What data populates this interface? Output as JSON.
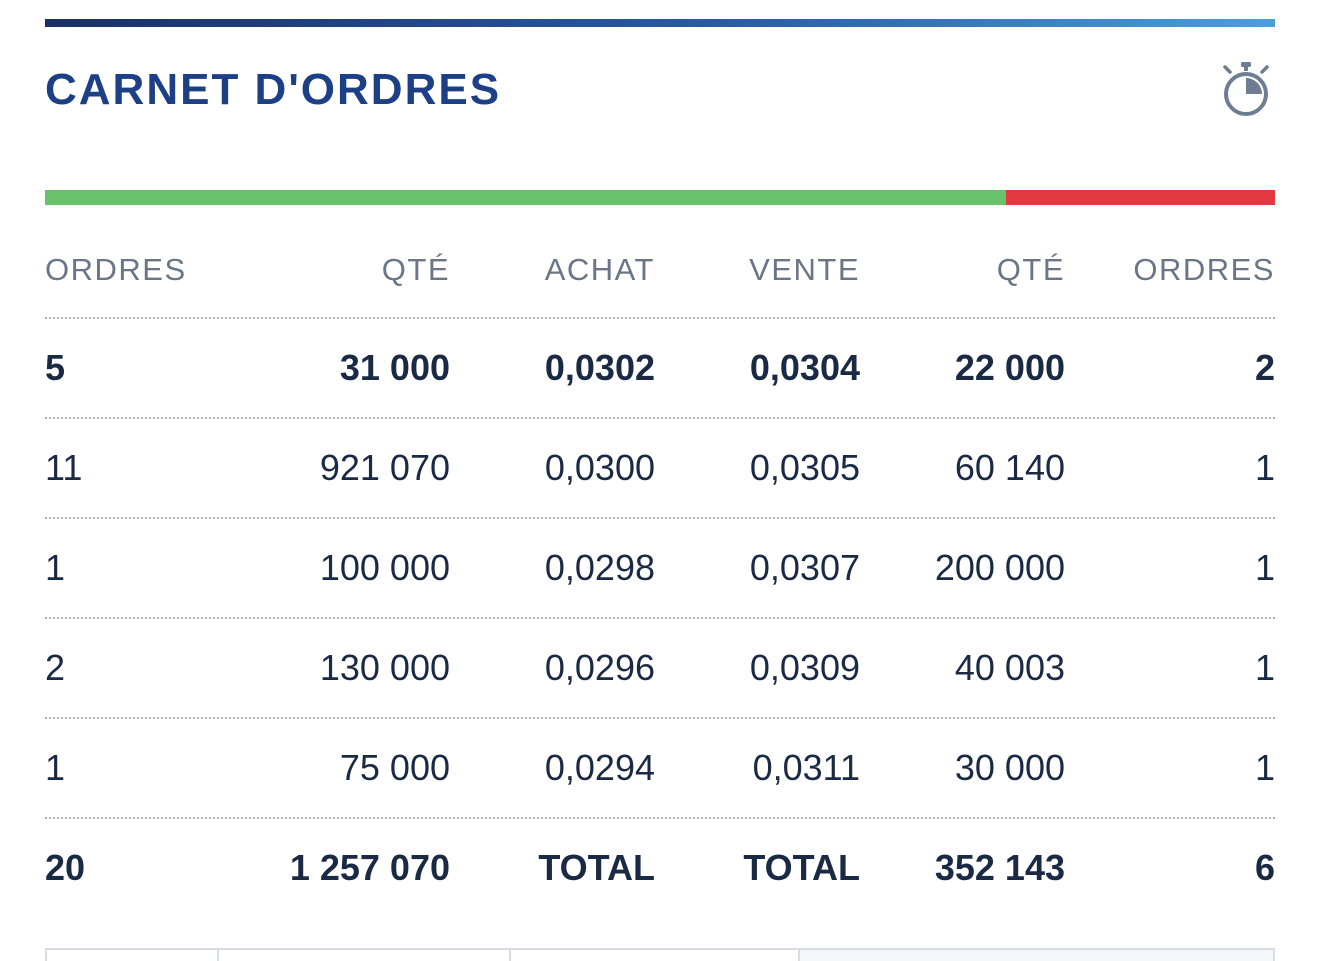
{
  "header": {
    "title": "CARNET D'ORDRES",
    "timer_icon": "stopwatch-icon"
  },
  "ratio": {
    "bid_fraction": 0.781,
    "ask_fraction": 0.219,
    "bid_color": "#69c36b",
    "ask_color": "#e1393f"
  },
  "columns": [
    "ORDRES",
    "QTÉ",
    "ACHAT",
    "VENTE",
    "QTÉ",
    "ORDRES"
  ],
  "rows": [
    {
      "bid_orders": "5",
      "bid_qty": "31 000",
      "bid_price": "0,0302",
      "ask_price": "0,0304",
      "ask_qty": "22 000",
      "ask_orders": "2"
    },
    {
      "bid_orders": "11",
      "bid_qty": "921 070",
      "bid_price": "0,0300",
      "ask_price": "0,0305",
      "ask_qty": "60 140",
      "ask_orders": "1"
    },
    {
      "bid_orders": "1",
      "bid_qty": "100 000",
      "bid_price": "0,0298",
      "ask_price": "0,0307",
      "ask_qty": "200 000",
      "ask_orders": "1"
    },
    {
      "bid_orders": "2",
      "bid_qty": "130 000",
      "bid_price": "0,0296",
      "ask_price": "0,0309",
      "ask_qty": "40 003",
      "ask_orders": "1"
    },
    {
      "bid_orders": "1",
      "bid_qty": "75 000",
      "bid_price": "0,0294",
      "ask_price": "0,0311",
      "ask_qty": "30 000",
      "ask_orders": "1"
    }
  ],
  "total": {
    "bid_orders": "20",
    "bid_qty": "1 257 070",
    "bid_label": "TOTAL",
    "ask_label": "TOTAL",
    "ask_qty": "352 143",
    "ask_orders": "6"
  }
}
